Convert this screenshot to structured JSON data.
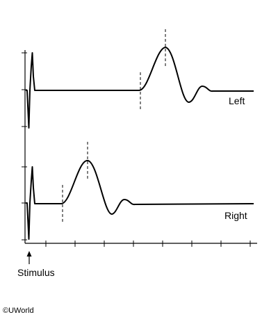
{
  "traces": [
    {
      "label": "Left"
    },
    {
      "label": "Right"
    }
  ],
  "stimulus_label": "Stimulus",
  "copyright": "©UWorld",
  "colors": {
    "ink": "#000000",
    "background": "#ffffff"
  }
}
